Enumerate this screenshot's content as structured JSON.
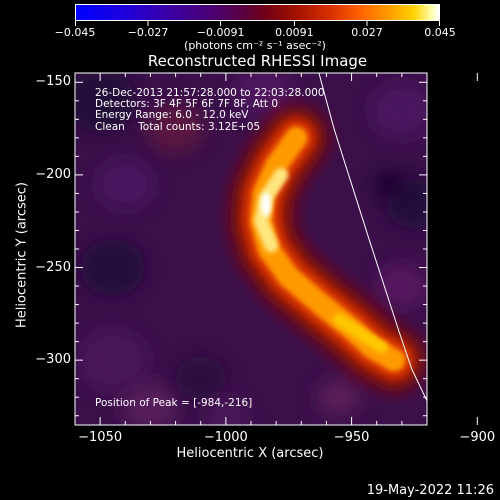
{
  "chart_data": {
    "type": "heatmap",
    "title": "Reconstructed RHESSI Image",
    "xlabel": "Heliocentric X (arcsec)",
    "ylabel": "Heliocentric Y (arcsec)",
    "xlim": [
      -1060,
      -920
    ],
    "ylim": [
      -335,
      -145
    ],
    "x_ticks": [
      -1050,
      -1000,
      -950,
      -900
    ],
    "x_tick_labels": [
      "−1050",
      "−1000",
      "−950",
      "−900"
    ],
    "y_ticks": [
      -150,
      -200,
      -250,
      -300
    ],
    "y_tick_labels": [
      "−150",
      "−200",
      "−250",
      "−300"
    ],
    "colorbar": {
      "ticks": [
        -0.045,
        -0.027,
        -0.0091,
        0.0091,
        0.027,
        0.045
      ],
      "tick_labels": [
        "−0.045",
        "−0.027",
        "−0.0091",
        "0.0091",
        "0.027",
        "0.045"
      ],
      "units_label": "(photons cm⁻² s⁻¹ asec⁻²)"
    },
    "annotations": {
      "time_range": "26-Dec-2013 21:57:28.000 to 22:03:28.000",
      "detectors": "Detectors: 3F 4F 5F 6F 7F 8F, Att 0",
      "energy_range": "Energy Range: 6.0 - 12.0 keV",
      "clean": "Clean    Total counts: 3.12E+05",
      "peak": "Position of Peak = [-984,-216]"
    },
    "peak_position": [
      -984,
      -216
    ],
    "limb_curve": [
      [
        -963,
        -145
      ],
      [
        -957,
        -175
      ],
      [
        -950,
        -205
      ],
      [
        -943,
        -235
      ],
      [
        -937,
        -260
      ],
      [
        -931,
        -285
      ],
      [
        -926,
        -305
      ],
      [
        -920,
        -322
      ],
      [
        -914,
        -335
      ]
    ],
    "source_ridge": [
      [
        -972,
        -180
      ],
      [
        -980,
        -195
      ],
      [
        -985,
        -210
      ],
      [
        -986,
        -225
      ],
      [
        -983,
        -240
      ],
      [
        -975,
        -255
      ],
      [
        -962,
        -270
      ],
      [
        -950,
        -283
      ],
      [
        -942,
        -293
      ],
      [
        -933,
        -300
      ]
    ]
  },
  "footer": {
    "timestamp": "19-May-2022 11:26"
  }
}
